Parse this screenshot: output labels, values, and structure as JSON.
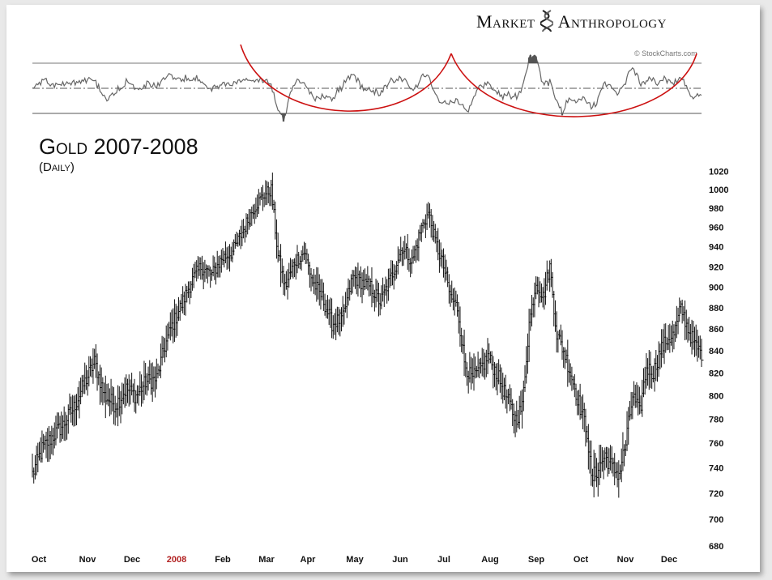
{
  "header": {
    "brand_left": "Market",
    "brand_right": "Anthropology",
    "credit": "© StockCharts.com"
  },
  "chart_data": [
    {
      "type": "line",
      "panel": "indicator",
      "title": "",
      "reference_lines": [
        "upper",
        "middle",
        "lower"
      ],
      "annotations": [
        "red-arc-1",
        "red-arc-2"
      ],
      "legend": "none"
    },
    {
      "type": "ohlc",
      "title": "Gold 2007-2008",
      "subtitle": "(Daily)",
      "x_ticks": [
        "Oct",
        "Nov",
        "Dec",
        "2008",
        "Feb",
        "Mar",
        "Apr",
        "May",
        "Jun",
        "Jul",
        "Aug",
        "Sep",
        "Oct",
        "Nov",
        "Dec"
      ],
      "x_highlight": "2008",
      "y_ticks": [
        680,
        700,
        720,
        740,
        760,
        780,
        800,
        820,
        840,
        860,
        880,
        900,
        920,
        940,
        960,
        980,
        1000,
        1020
      ],
      "ylim": [
        680,
        1025
      ],
      "y_scale": "log",
      "grid": false,
      "path_close": [
        [
          0,
          735
        ],
        [
          7,
          755
        ],
        [
          14,
          765
        ],
        [
          22,
          775
        ],
        [
          30,
          790
        ],
        [
          38,
          812
        ],
        [
          45,
          830
        ],
        [
          52,
          800
        ],
        [
          60,
          792
        ],
        [
          68,
          806
        ],
        [
          75,
          800
        ],
        [
          82,
          812
        ],
        [
          90,
          815
        ],
        [
          95,
          840
        ],
        [
          100,
          860
        ],
        [
          107,
          880
        ],
        [
          115,
          905
        ],
        [
          122,
          920
        ],
        [
          130,
          912
        ],
        [
          137,
          928
        ],
        [
          145,
          935
        ],
        [
          152,
          955
        ],
        [
          160,
          980
        ],
        [
          168,
          995
        ],
        [
          173,
          1000
        ],
        [
          178,
          930
        ],
        [
          183,
          900
        ],
        [
          190,
          925
        ],
        [
          197,
          935
        ],
        [
          203,
          905
        ],
        [
          210,
          890
        ],
        [
          217,
          865
        ],
        [
          225,
          870
        ],
        [
          232,
          910
        ],
        [
          238,
          905
        ],
        [
          245,
          900
        ],
        [
          252,
          885
        ],
        [
          260,
          910
        ],
        [
          268,
          940
        ],
        [
          275,
          925
        ],
        [
          282,
          960
        ],
        [
          287,
          975
        ],
        [
          292,
          945
        ],
        [
          298,
          920
        ],
        [
          303,
          890
        ],
        [
          308,
          880
        ],
        [
          313,
          830
        ],
        [
          318,
          815
        ],
        [
          323,
          820
        ],
        [
          330,
          835
        ],
        [
          337,
          818
        ],
        [
          343,
          800
        ],
        [
          350,
          780
        ],
        [
          355,
          790
        ],
        [
          360,
          865
        ],
        [
          365,
          905
        ],
        [
          370,
          890
        ],
        [
          375,
          920
        ],
        [
          380,
          855
        ],
        [
          385,
          840
        ],
        [
          390,
          820
        ],
        [
          397,
          790
        ],
        [
          402,
          770
        ],
        [
          405,
          730
        ],
        [
          410,
          740
        ],
        [
          415,
          750
        ],
        [
          420,
          740
        ],
        [
          425,
          735
        ],
        [
          430,
          760
        ],
        [
          435,
          800
        ],
        [
          440,
          785
        ],
        [
          445,
          825
        ],
        [
          450,
          820
        ],
        [
          455,
          840
        ],
        [
          460,
          850
        ],
        [
          465,
          855
        ],
        [
          470,
          880
        ],
        [
          475,
          860
        ],
        [
          480,
          845
        ],
        [
          485,
          838
        ]
      ]
    }
  ]
}
